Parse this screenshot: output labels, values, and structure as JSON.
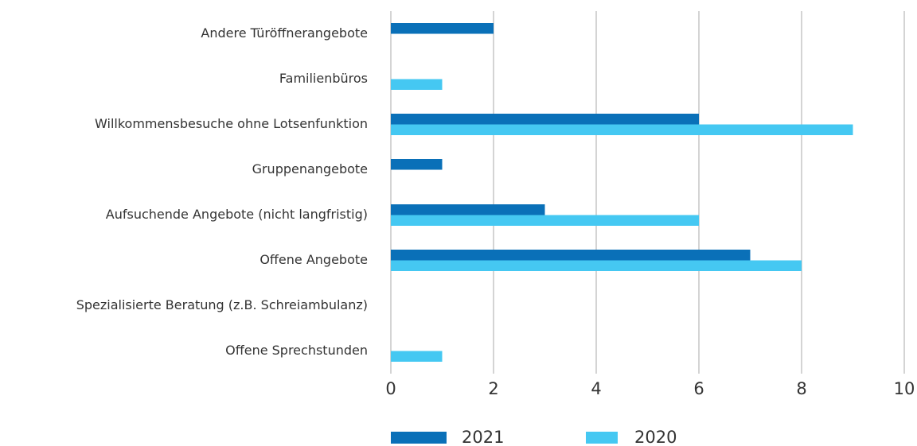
{
  "chart_data": {
    "type": "barh",
    "categories": [
      "Andere Türöffnerangebote",
      "Familienbüros",
      "Willkommensbesuche ohne Lotsenfunktion",
      "Gruppenangebote",
      "Aufsuchende Angebote (nicht langfristig)",
      "Offene Angebote",
      "Spezialisierte Beratung (z.B. Schreiambulanz)",
      "Offene Sprechstunden"
    ],
    "series": [
      {
        "name": "2021",
        "color": "#0a70b8",
        "values": [
          2,
          0,
          6,
          1,
          3,
          7,
          0,
          0
        ]
      },
      {
        "name": "2020",
        "color": "#45c8f2",
        "values": [
          0,
          1,
          9,
          0,
          6,
          8,
          0,
          1
        ]
      }
    ],
    "xlim": [
      0,
      10
    ],
    "xticks": [
      0,
      2,
      4,
      6,
      8,
      10
    ],
    "grid": true,
    "legend": "bottom"
  }
}
